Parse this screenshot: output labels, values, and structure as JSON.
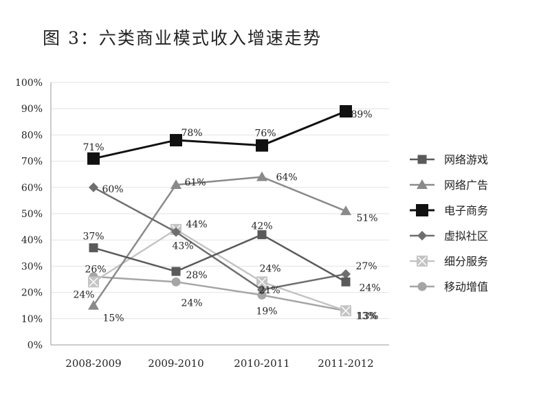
{
  "title": "图 3：六类商业模式收入增速走势",
  "chart_data": {
    "type": "line",
    "title": "图 3：六类商业模式收入增速走势",
    "xlabel": "",
    "ylabel": "",
    "categories": [
      "2008-2009",
      "2009-2010",
      "2010-2011",
      "2011-2012"
    ],
    "ylim": [
      0,
      100
    ],
    "yticks": [
      "0%",
      "10%",
      "20%",
      "30%",
      "40%",
      "50%",
      "60%",
      "70%",
      "80%",
      "90%",
      "100%"
    ],
    "grid": true,
    "legend_position": "right",
    "series": [
      {
        "name": "网络游戏",
        "values": [
          37,
          28,
          42,
          24
        ],
        "labels": [
          "37%",
          "28%",
          "42%",
          "24%"
        ],
        "color": "#5a5a5a",
        "marker": "square"
      },
      {
        "name": "网络广告",
        "values": [
          15,
          61,
          64,
          51
        ],
        "labels": [
          "15%",
          "61%",
          "64%",
          "51%"
        ],
        "color": "#8a8a8a",
        "marker": "triangle"
      },
      {
        "name": "电子商务",
        "values": [
          71,
          78,
          76,
          89
        ],
        "labels": [
          "71%",
          "78%",
          "76%",
          "89%"
        ],
        "color": "#111111",
        "marker": "square-large"
      },
      {
        "name": "虚拟社区",
        "values": [
          60,
          43,
          21,
          27
        ],
        "labels": [
          "60%",
          "43%",
          "21%",
          "27%"
        ],
        "color": "#6e6e6e",
        "marker": "diamond"
      },
      {
        "name": "细分服务",
        "values": [
          24,
          44,
          24,
          13
        ],
        "labels": [
          "24%",
          "44%",
          "24%",
          "13%"
        ],
        "color": "#c4c4c4",
        "marker": "x-square"
      },
      {
        "name": "移动增值",
        "values": [
          26,
          24,
          19,
          13
        ],
        "labels": [
          "26%",
          "24%",
          "19%",
          "13%"
        ],
        "color": "#a5a5a5",
        "marker": "circle"
      }
    ]
  }
}
